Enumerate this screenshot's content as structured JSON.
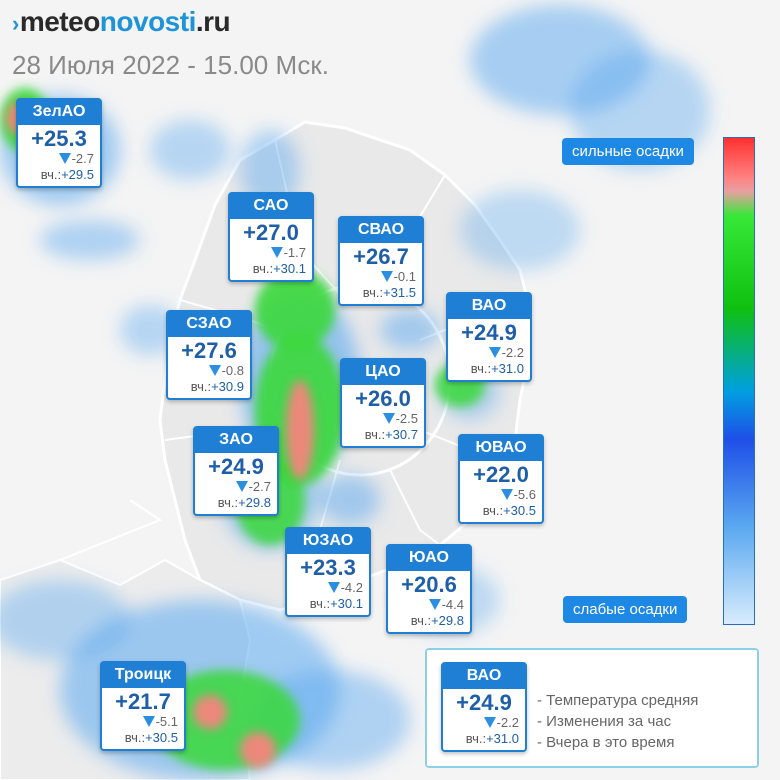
{
  "brand": {
    "prefix": "meteo",
    "accent": "novosti",
    "suffix": ".ru",
    "mark": "›"
  },
  "datestamp": "28 Июля 2022 - 15.00 Мск.",
  "cards": [
    {
      "name": "ЗелАО",
      "temp": "+25.3",
      "change": "-2.7",
      "yesterday_label": "вч.:",
      "yesterday": "+29.5"
    },
    {
      "name": "САО",
      "temp": "+27.0",
      "change": "-1.7",
      "yesterday_label": "вч.:",
      "yesterday": "+30.1"
    },
    {
      "name": "СВАО",
      "temp": "+26.7",
      "change": "-0.1",
      "yesterday_label": "вч.:",
      "yesterday": "+31.5"
    },
    {
      "name": "ВАО",
      "temp": "+24.9",
      "change": "-2.2",
      "yesterday_label": "вч.:",
      "yesterday": "+31.0"
    },
    {
      "name": "СЗАО",
      "temp": "+27.6",
      "change": "-0.8",
      "yesterday_label": "вч.:",
      "yesterday": "+30.9"
    },
    {
      "name": "ЦАО",
      "temp": "+26.0",
      "change": "-2.5",
      "yesterday_label": "вч.:",
      "yesterday": "+30.7"
    },
    {
      "name": "ЗАО",
      "temp": "+24.9",
      "change": "-2.7",
      "yesterday_label": "вч.:",
      "yesterday": "+29.8"
    },
    {
      "name": "ЮВАО",
      "temp": "+22.0",
      "change": "-5.6",
      "yesterday_label": "вч.:",
      "yesterday": "+30.5"
    },
    {
      "name": "ЮЗАО",
      "temp": "+23.3",
      "change": "-4.2",
      "yesterday_label": "вч.:",
      "yesterday": "+30.1"
    },
    {
      "name": "ЮАО",
      "temp": "+20.6",
      "change": "-4.4",
      "yesterday_label": "вч.:",
      "yesterday": "+29.8"
    },
    {
      "name": "Троицк",
      "temp": "+21.7",
      "change": "-5.1",
      "yesterday_label": "вч.:",
      "yesterday": "+30.5"
    }
  ],
  "scale": {
    "top_label": "сильные осадки",
    "bottom_label": "слабые осадки"
  },
  "legend": {
    "sample": {
      "name": "ВАО",
      "temp": "+24.9",
      "change": "-2.2",
      "yesterday_label": "вч.:",
      "yesterday": "+31.0"
    },
    "items": [
      "- Температура средняя",
      "- Изменения за час",
      "- Вчера в это время"
    ]
  },
  "colors": {
    "accent": "#1e7fd4",
    "brand_accent": "#1e93d8",
    "heavy": "#ff3030",
    "medium": "#10c010",
    "light": "#5aa8f0"
  }
}
